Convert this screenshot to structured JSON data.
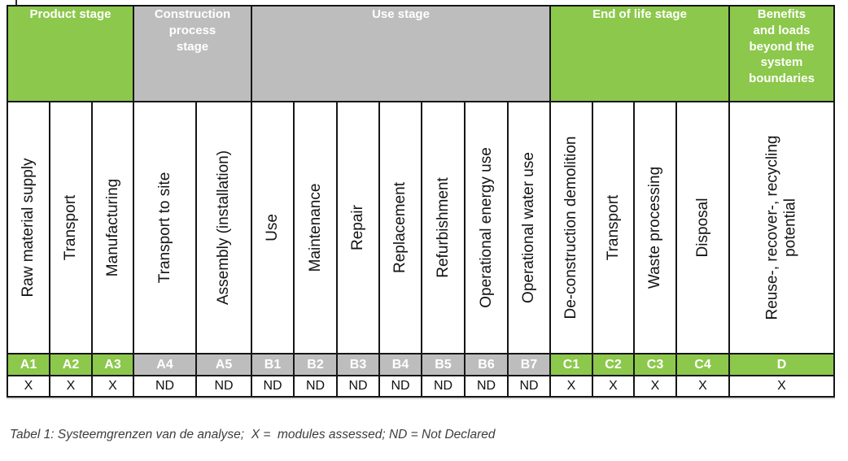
{
  "table": {
    "colors": {
      "green": "#8CC84B",
      "gray": "#BDBDBD"
    },
    "stage_groups": [
      {
        "label": "Product stage",
        "colspan": 3,
        "color": "green"
      },
      {
        "label": "Construction process stage",
        "colspan": 2,
        "color": "gray"
      },
      {
        "label": "Use stage",
        "colspan": 7,
        "color": "gray"
      },
      {
        "label": "End of life stage",
        "colspan": 4,
        "color": "green"
      },
      {
        "label": "Benefits and loads beyond the system boundaries",
        "colspan": 1,
        "color": "green"
      }
    ],
    "modules": [
      {
        "code": "A1",
        "name": "Raw material supply",
        "group": "green",
        "value": "X"
      },
      {
        "code": "A2",
        "name": "Transport",
        "group": "green",
        "value": "X"
      },
      {
        "code": "A3",
        "name": "Manufacturing",
        "group": "green",
        "value": "X"
      },
      {
        "code": "A4",
        "name": "Transport to site",
        "group": "gray",
        "value": "ND"
      },
      {
        "code": "A5",
        "name": "Assembly (installation)",
        "group": "gray",
        "value": "ND"
      },
      {
        "code": "B1",
        "name": "Use",
        "group": "gray",
        "value": "ND"
      },
      {
        "code": "B2",
        "name": "Maintenance",
        "group": "gray",
        "value": "ND"
      },
      {
        "code": "B3",
        "name": "Repair",
        "group": "gray",
        "value": "ND"
      },
      {
        "code": "B4",
        "name": "Replacement",
        "group": "gray",
        "value": "ND"
      },
      {
        "code": "B5",
        "name": "Refurbishment",
        "group": "gray",
        "value": "ND"
      },
      {
        "code": "B6",
        "name": "Operational energy use",
        "group": "gray",
        "value": "ND"
      },
      {
        "code": "B7",
        "name": "Operational water use",
        "group": "gray",
        "value": "ND"
      },
      {
        "code": "C1",
        "name": "De-construction demolition",
        "group": "green",
        "value": "X"
      },
      {
        "code": "C2",
        "name": "Transport",
        "group": "green",
        "value": "X"
      },
      {
        "code": "C3",
        "name": "Waste processing",
        "group": "green",
        "value": "X"
      },
      {
        "code": "C4",
        "name": "Disposal",
        "group": "green",
        "value": "X"
      },
      {
        "code": "D",
        "name": "Reuse-, recover-, recycling potential",
        "group": "green",
        "value": "X"
      }
    ]
  },
  "caption": "Tabel 1: Systeemgrenzen van de analyse;  X =  modules assessed; ND = Not Declared"
}
